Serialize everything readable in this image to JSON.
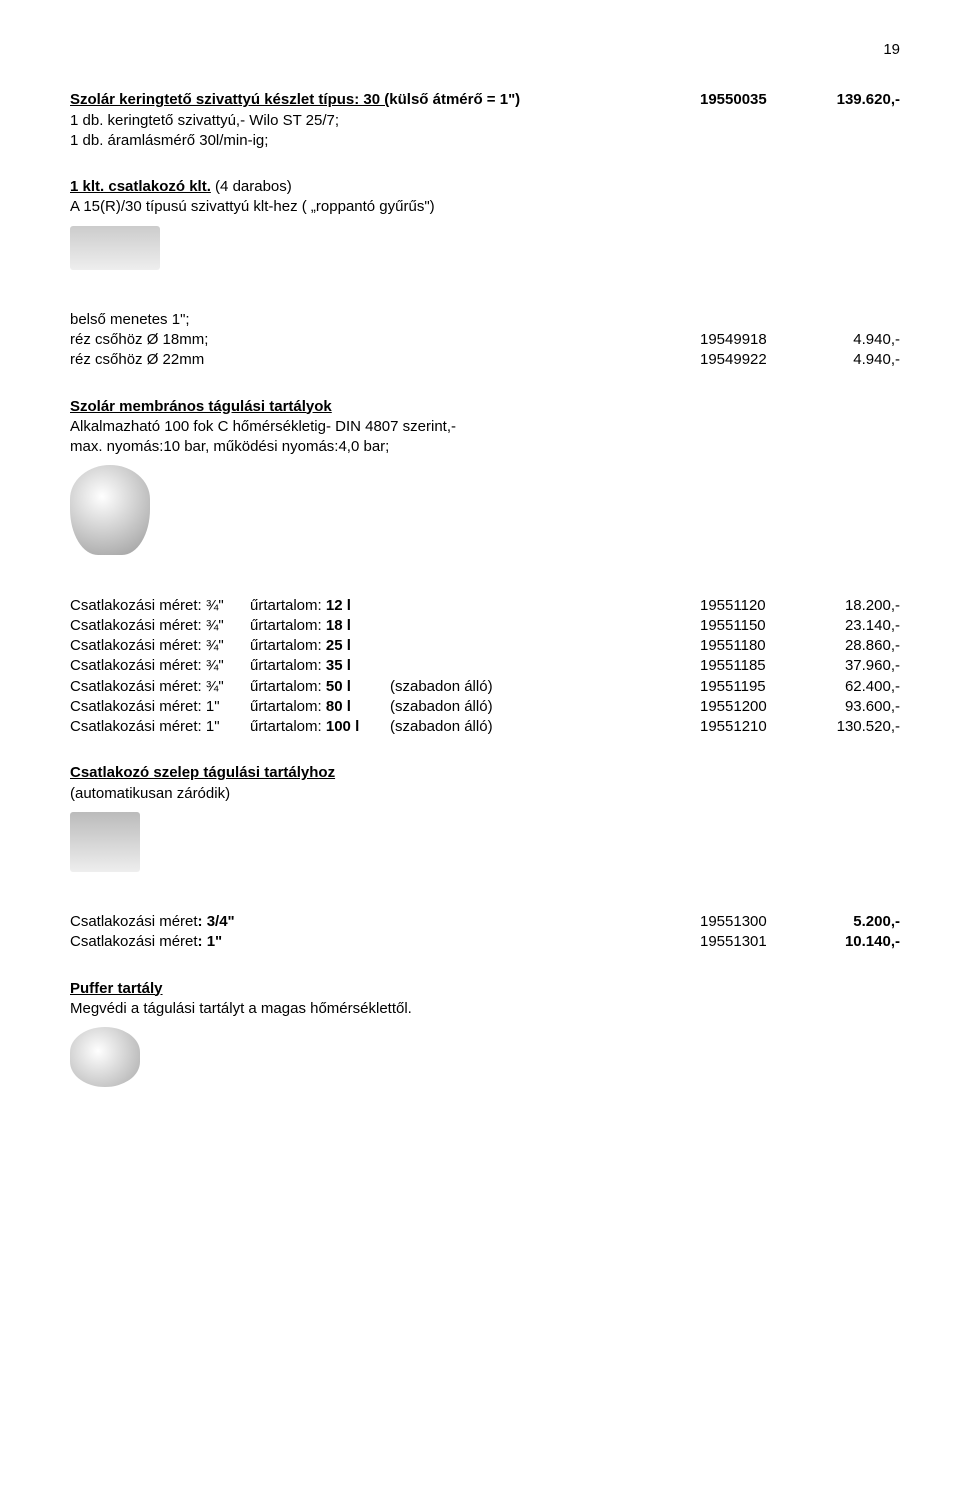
{
  "page_number": "19",
  "header": {
    "title_prefix": "Szolár keringtető szivattyú készlet típus: 30 (",
    "title_suffix": "külső átmérő = 1\")",
    "code": "19550035",
    "price": "139.620,-",
    "line1": "1 db. keringtető szivattyú,- Wilo ST 25/7;",
    "line2": "1 db. áramlásmérő 30l/min-ig;"
  },
  "csatlakozo_klt": {
    "label_prefix": "1 klt. csatlakozó klt.",
    "desc": " (4 darabos)",
    "line2": "A 15(R)/30 típusú szivattyú klt-hez ( „roppantó gyűrűs\")"
  },
  "menetes": {
    "line1": "belső menetes 1\";",
    "items": [
      {
        "label": "réz csőhöz Ø 18mm;",
        "code": "19549918",
        "price": "4.940,-"
      },
      {
        "label": "réz csőhöz Ø 22mm",
        "code": "19549922",
        "price": "4.940,-"
      }
    ]
  },
  "tagulasi": {
    "title": "Szolár membrános tágulási tartályok",
    "desc1": "Alkalmazható 100 fok C hőmérsékletig- DIN 4807 szerint,-",
    "desc2": "max. nyomás:10 bar, működési nyomás:4,0 bar;",
    "items": [
      {
        "size": "Csatlakozási méret: ¾\"",
        "cap_label": "űrtartalom:",
        "cap_val": "12 l",
        "extra": "",
        "code": "19551120",
        "price": "18.200,-"
      },
      {
        "size": "Csatlakozási méret: ¾\"",
        "cap_label": "űrtartalom:",
        "cap_val": "18 l",
        "extra": "",
        "code": "19551150",
        "price": "23.140,-"
      },
      {
        "size": "Csatlakozási méret: ¾\"",
        "cap_label": "űrtartalom:",
        "cap_val": "25 l",
        "extra": "",
        "code": "19551180",
        "price": "28.860,-"
      },
      {
        "size": "Csatlakozási méret: ¾\"",
        "cap_label": "űrtartalom:",
        "cap_val": "35 l",
        "extra": "",
        "code": "19551185",
        "price": "37.960,-"
      },
      {
        "size": "Csatlakozási méret: ¾\"",
        "cap_label": "űrtartalom:",
        "cap_val": "50 l",
        "extra": "(szabadon álló)",
        "code": "19551195",
        "price": "62.400,-"
      },
      {
        "size": "Csatlakozási méret: 1\"",
        "cap_label": "űrtartalom:",
        "cap_val": "80 l",
        "extra": "(szabadon álló)",
        "code": "19551200",
        "price": "93.600,-"
      },
      {
        "size": "Csatlakozási méret: 1\"",
        "cap_label": "űrtartalom:",
        "cap_val": "100 l",
        "extra": "(szabadon álló)",
        "code": "19551210",
        "price": "130.520,-"
      }
    ]
  },
  "szelep": {
    "title": "Csatlakozó szelep tágulási tartályhoz",
    "desc": "(automatikusan záródik)",
    "items": [
      {
        "label_prefix": "Csatlakozási méret",
        "label_suffix": ": 3/4\"",
        "code": "19551300",
        "price": "5.200,-"
      },
      {
        "label_prefix": "Csatlakozási méret",
        "label_suffix": ": 1\"",
        "code": "19551301",
        "price": "10.140,-"
      }
    ]
  },
  "puffer": {
    "title": "Puffer tartály",
    "desc": "Megvédi a tágulási tartályt a magas hőmérséklettől."
  }
}
